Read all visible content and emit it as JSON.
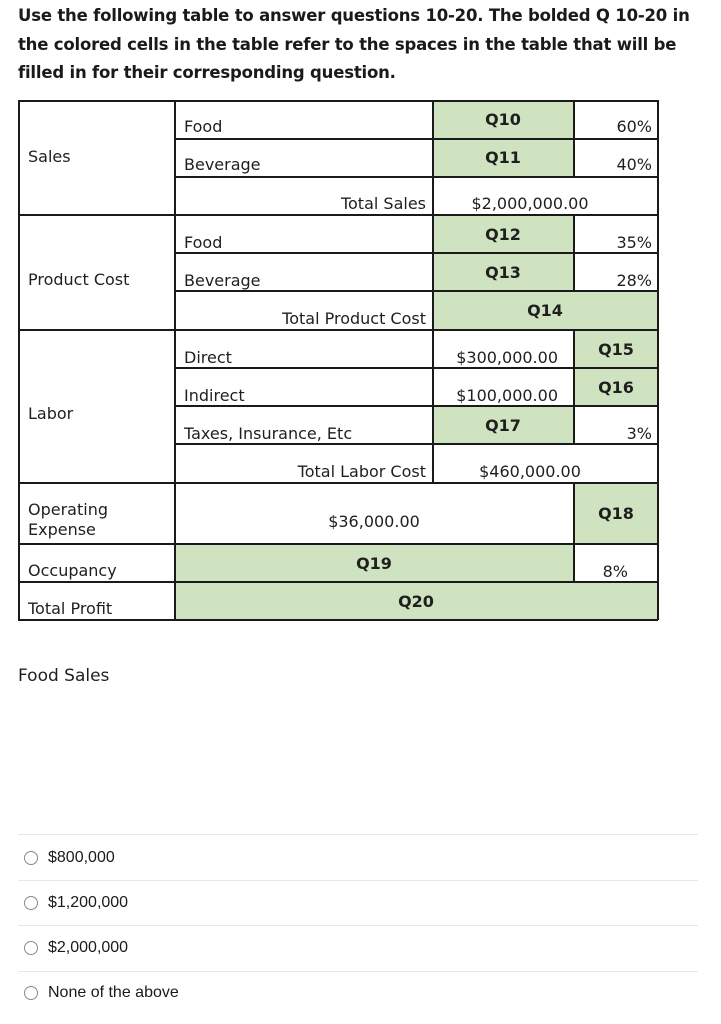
{
  "intro": "Use the following table to answer questions 10-20. The bolded Q 10-20 in the colored cells in the table refer to the spaces in the table that will be filled in for their corresponding question.",
  "table": {
    "sales": {
      "label": "Sales",
      "food": "Food",
      "food_q": "Q10",
      "food_pct": "60%",
      "beverage": "Beverage",
      "beverage_q": "Q11",
      "beverage_pct": "40%",
      "total_label": "Total Sales",
      "total_value": "$2,000,000.00"
    },
    "product_cost": {
      "label": "Product Cost",
      "food": "Food",
      "food_q": "Q12",
      "food_pct": "35%",
      "beverage": "Beverage",
      "beverage_q": "Q13",
      "beverage_pct": "28%",
      "total_label": "Total Product Cost",
      "total_q": "Q14"
    },
    "labor": {
      "label": "Labor",
      "direct": "Direct",
      "direct_value": "$300,000.00",
      "direct_q": "Q15",
      "indirect": "Indirect",
      "indirect_value": "$100,000.00",
      "indirect_q": "Q16",
      "taxes": "Taxes, Insurance, Etc",
      "taxes_q": "Q17",
      "taxes_pct": "3%",
      "total_label": "Total Labor Cost",
      "total_value": "$460,000.00"
    },
    "operating": {
      "label": "Operating Expense",
      "value": "$36,000.00",
      "q": "Q18"
    },
    "occupancy": {
      "label": "Occupancy",
      "q": "Q19",
      "pct": "8%"
    },
    "profit": {
      "label": "Total Profit",
      "q": "Q20"
    }
  },
  "question": {
    "label": "Food Sales",
    "options": [
      "$800,000",
      "$1,200,000",
      "$2,000,000",
      "None of the above"
    ]
  },
  "colors": {
    "highlight": "#cfe3c1",
    "border": "#1a1a1a"
  }
}
